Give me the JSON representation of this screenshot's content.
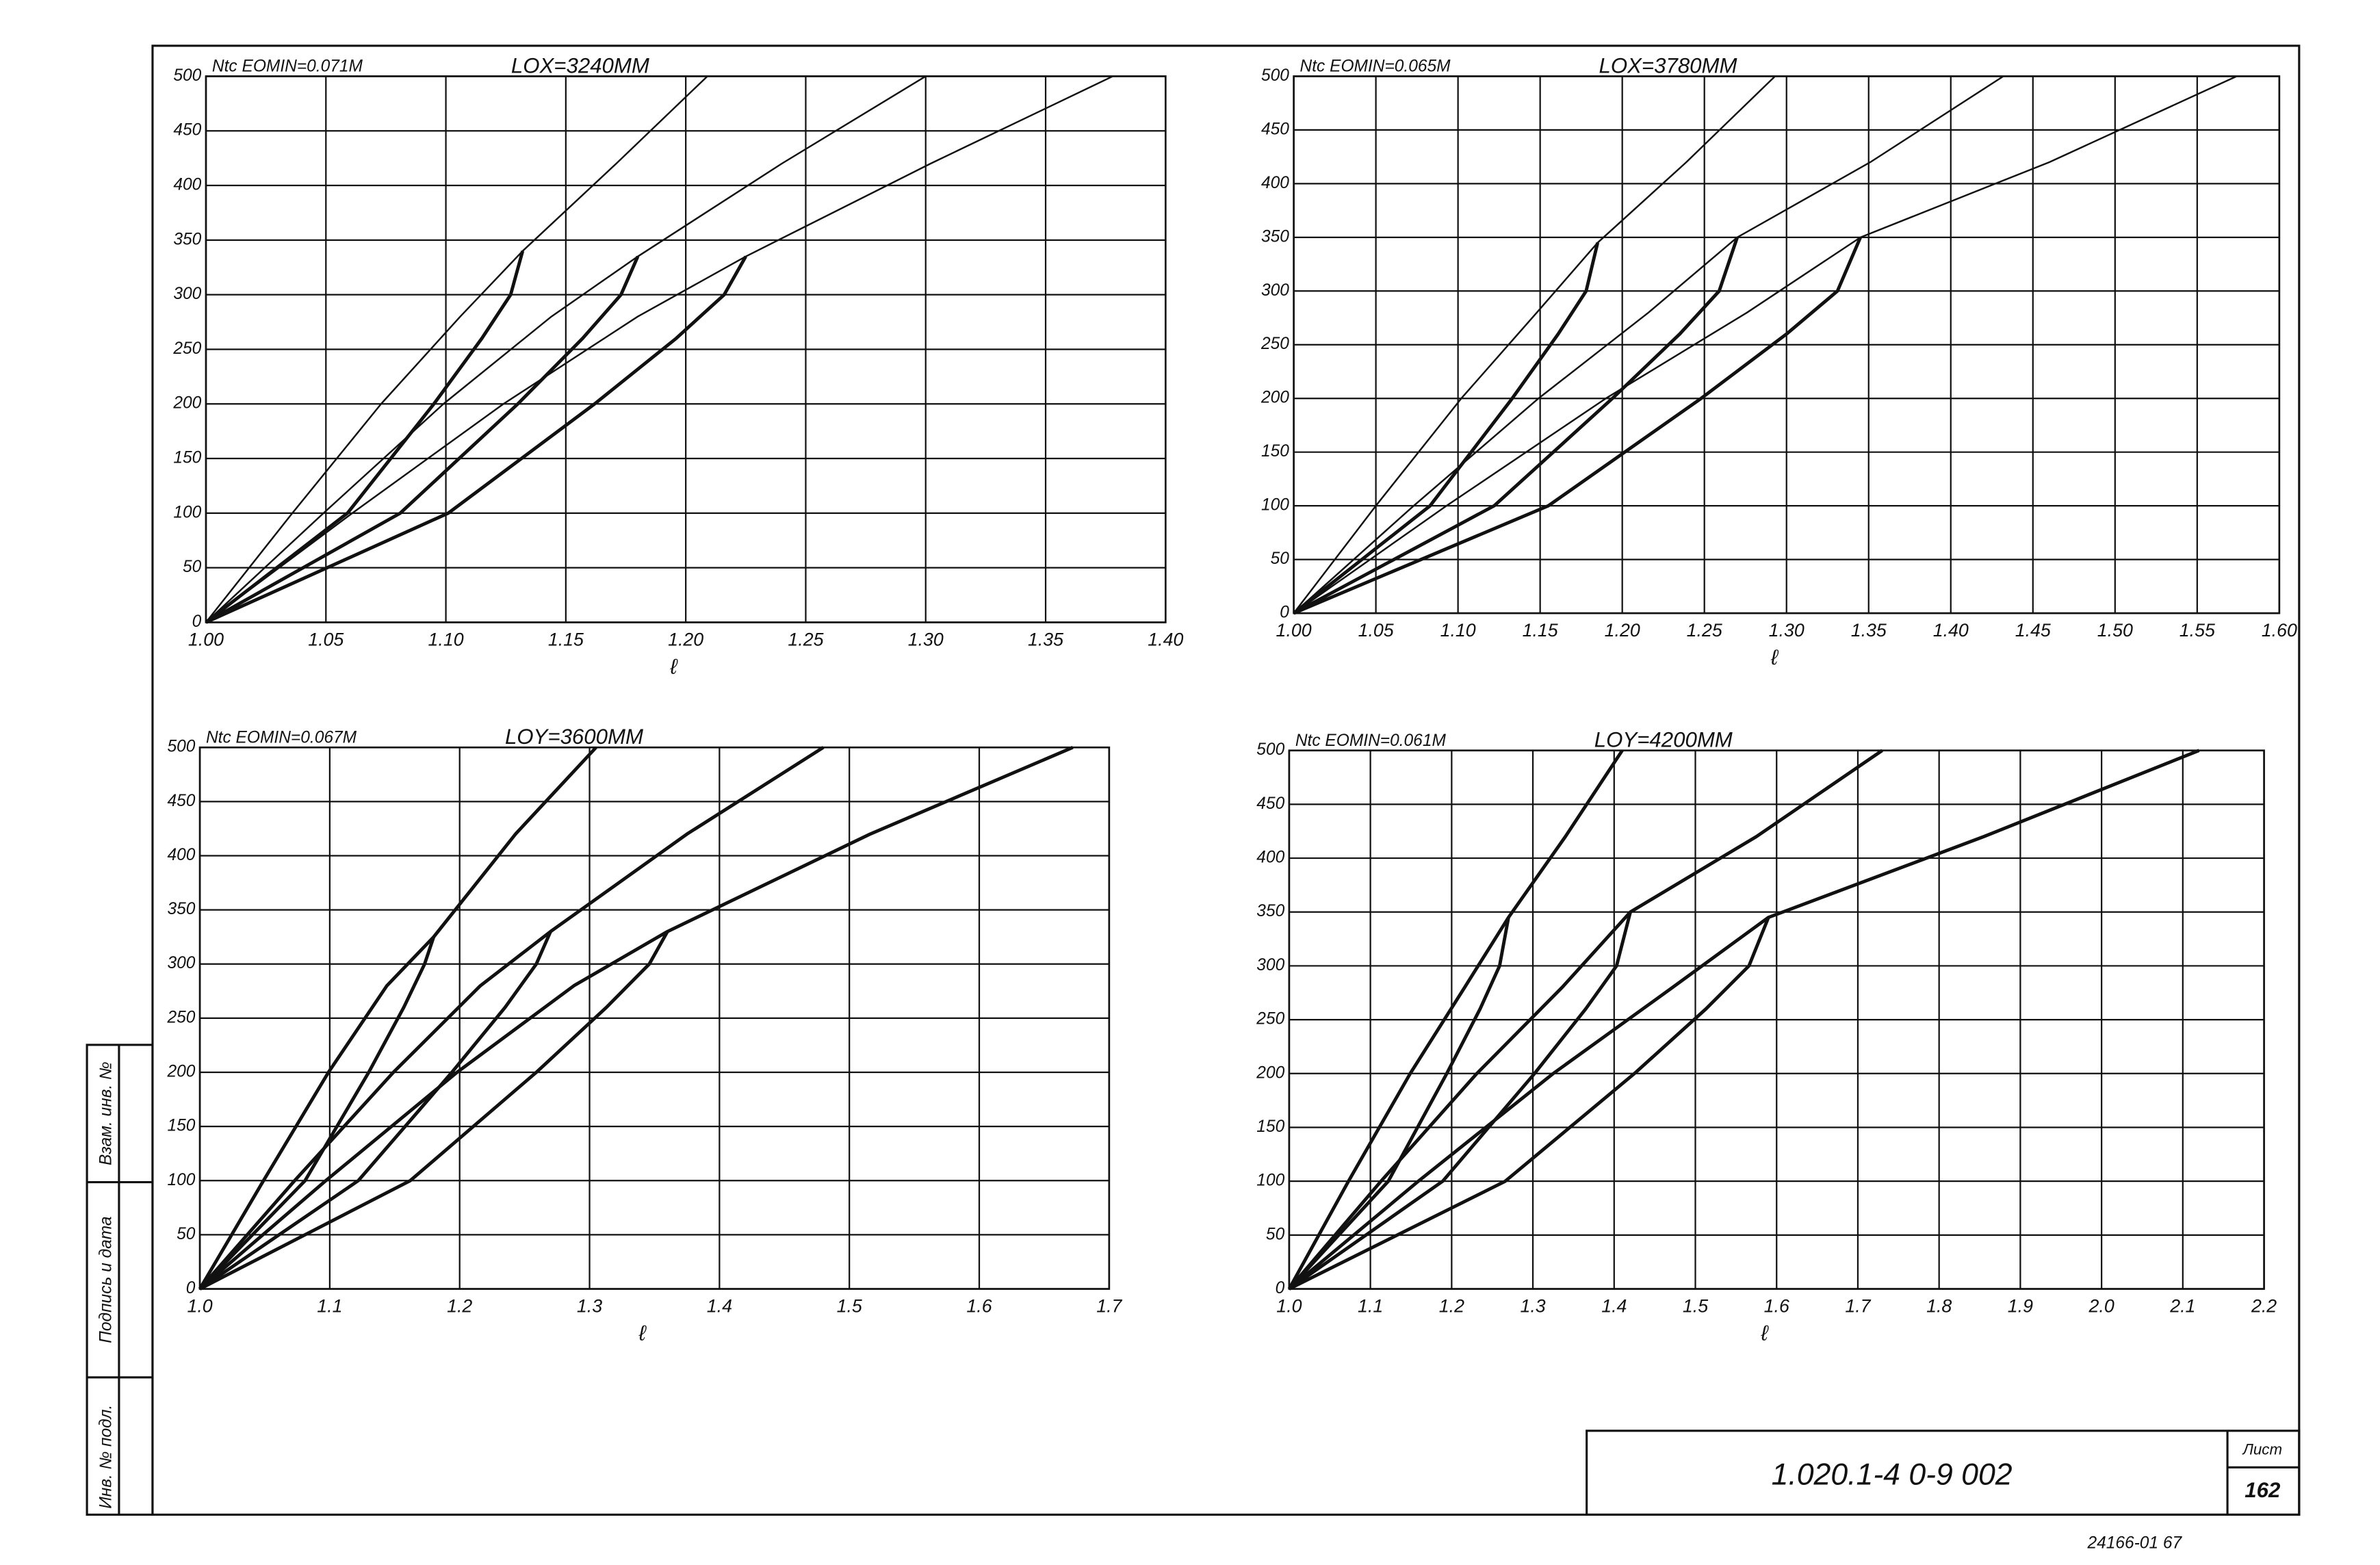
{
  "chart_data": [
    {
      "type": "line",
      "title": "Ntc EOMIN=0.071M",
      "subtitle": "LOX=3240MM",
      "xlabel": "ℓ",
      "xlim": [
        1.0,
        1.4
      ],
      "ylim": [
        0,
        500
      ],
      "grid": true,
      "xticks": [
        {
          "value": 1.0,
          "label": "1.00"
        },
        1.05,
        {
          "value": 1.1,
          "label": "1.10"
        },
        1.15,
        {
          "value": 1.2,
          "label": "1.20"
        },
        1.25,
        {
          "value": 1.3,
          "label": "1.30"
        },
        1.35,
        {
          "value": 1.4,
          "label": "1.40"
        }
      ],
      "yticks": [
        0,
        50,
        100,
        150,
        200,
        250,
        300,
        350,
        400,
        450,
        500
      ],
      "series": [
        {
          "color": "#111",
          "line_width": 1,
          "x": [
            1,
            1.036,
            1.073,
            1.106,
            1.132,
            1.171,
            1.209
          ],
          "values": [
            0,
            100,
            200,
            280,
            340,
            420,
            500
          ]
        },
        {
          "color": "#111",
          "line_width": 2,
          "x": [
            1,
            1.059,
            1.095,
            1.115,
            1.127,
            1.132
          ],
          "values": [
            0,
            100,
            200,
            260,
            300,
            340
          ]
        },
        {
          "color": "#111",
          "line_width": 1,
          "x": [
            1,
            1.049,
            1.099,
            1.144,
            1.18,
            1.24,
            1.3
          ],
          "values": [
            0,
            100,
            200,
            280,
            335,
            420,
            500
          ]
        },
        {
          "color": "#111",
          "line_width": 2,
          "x": [
            1,
            1.081,
            1.13,
            1.157,
            1.173,
            1.18
          ],
          "values": [
            0,
            100,
            200,
            260,
            300,
            335
          ]
        },
        {
          "color": "#111",
          "line_width": 1,
          "x": [
            1,
            1.061,
            1.124,
            1.18,
            1.225,
            1.302,
            1.378
          ],
          "values": [
            0,
            100,
            200,
            280,
            335,
            420,
            500
          ]
        },
        {
          "color": "#111",
          "line_width": 2,
          "x": [
            1,
            1.101,
            1.162,
            1.196,
            1.216,
            1.225
          ],
          "values": [
            0,
            100,
            200,
            260,
            300,
            335
          ]
        }
      ]
    },
    {
      "type": "line",
      "title": "Ntc EOMIN=0.065M",
      "subtitle": "LOX=3780MM",
      "xlabel": "ℓ",
      "xlim": [
        1.0,
        1.6
      ],
      "ylim": [
        0,
        500
      ],
      "grid": true,
      "xticks": [
        {
          "value": 1.0,
          "label": "1.00"
        },
        1.05,
        {
          "value": 1.1,
          "label": "1.10"
        },
        1.15,
        {
          "value": 1.2,
          "label": "1.20"
        },
        1.25,
        {
          "value": 1.3,
          "label": "1.30"
        },
        1.35,
        {
          "value": 1.4,
          "label": "1.40"
        },
        1.45,
        {
          "value": 1.5,
          "label": "1.50"
        },
        1.55,
        {
          "value": 1.6,
          "label": "1.60"
        }
      ],
      "yticks": [
        0,
        50,
        100,
        150,
        200,
        250,
        300,
        350,
        400,
        450,
        500
      ],
      "series": [
        {
          "color": "#111",
          "line_width": 1,
          "x": [
            1,
            1.05,
            1.102,
            1.148,
            1.185,
            1.239,
            1.293
          ],
          "values": [
            0,
            100,
            200,
            280,
            345,
            420,
            500
          ]
        },
        {
          "color": "#111",
          "line_width": 2,
          "x": [
            1,
            1.083,
            1.133,
            1.161,
            1.178,
            1.185
          ],
          "values": [
            0,
            100,
            200,
            260,
            300,
            345
          ]
        },
        {
          "color": "#111",
          "line_width": 1,
          "x": [
            1,
            1.073,
            1.149,
            1.216,
            1.27,
            1.351,
            1.432
          ],
          "values": [
            0,
            100,
            200,
            280,
            350,
            420,
            500
          ]
        },
        {
          "color": "#111",
          "line_width": 2,
          "x": [
            1,
            1.122,
            1.194,
            1.235,
            1.259,
            1.27
          ],
          "values": [
            0,
            100,
            200,
            260,
            300,
            350
          ]
        },
        {
          "color": "#111",
          "line_width": 1,
          "x": [
            1,
            1.093,
            1.19,
            1.276,
            1.345,
            1.46,
            1.574
          ],
          "values": [
            0,
            100,
            200,
            280,
            350,
            420,
            500
          ]
        },
        {
          "color": "#111",
          "line_width": 2,
          "x": [
            1,
            1.155,
            1.248,
            1.3,
            1.331,
            1.345
          ],
          "values": [
            0,
            100,
            200,
            260,
            300,
            350
          ]
        }
      ]
    },
    {
      "type": "line",
      "title": "Ntc EOMIN=0.067M",
      "subtitle": "LOY=3600MM",
      "xlabel": "ℓ",
      "xlim": [
        1.0,
        1.7
      ],
      "ylim": [
        0,
        500
      ],
      "grid": true,
      "xticks": [
        {
          "value": 1.0,
          "label": "1.0"
        },
        1.1,
        1.2,
        1.3,
        1.4,
        1.5,
        1.6,
        1.7
      ],
      "yticks": [
        0,
        50,
        100,
        150,
        200,
        250,
        300,
        350,
        400,
        450,
        500
      ],
      "series": [
        {
          "color": "#111",
          "line_width": 2,
          "x": [
            1,
            1.049,
            1.099,
            1.144,
            1.18,
            1.243,
            1.305
          ],
          "values": [
            0,
            100,
            200,
            280,
            325,
            420,
            500
          ]
        },
        {
          "color": "#111",
          "line_width": 2,
          "x": [
            1,
            1.081,
            1.13,
            1.157,
            1.173,
            1.18
          ],
          "values": [
            0,
            100,
            200,
            260,
            300,
            325
          ]
        },
        {
          "color": "#111",
          "line_width": 2,
          "x": [
            1,
            1.073,
            1.149,
            1.216,
            1.27,
            1.375,
            1.48
          ],
          "values": [
            0,
            100,
            200,
            280,
            330,
            420,
            500
          ]
        },
        {
          "color": "#111",
          "line_width": 2,
          "x": [
            1,
            1.122,
            1.194,
            1.235,
            1.259,
            1.27
          ],
          "values": [
            0,
            100,
            200,
            260,
            300,
            330
          ]
        },
        {
          "color": "#111",
          "line_width": 2,
          "x": [
            1,
            1.097,
            1.198,
            1.288,
            1.36,
            1.516,
            1.672
          ],
          "values": [
            0,
            100,
            200,
            280,
            330,
            420,
            500
          ]
        },
        {
          "color": "#111",
          "line_width": 2,
          "x": [
            1,
            1.162,
            1.259,
            1.313,
            1.346,
            1.36
          ],
          "values": [
            0,
            100,
            200,
            260,
            300,
            330
          ]
        }
      ]
    },
    {
      "type": "line",
      "title": "Ntc EOMIN=0.061M",
      "subtitle": "LOY=4200MM",
      "xlabel": "ℓ",
      "xlim": [
        1.0,
        2.2
      ],
      "ylim": [
        0,
        500
      ],
      "grid": true,
      "xticks": [
        {
          "value": 1.0,
          "label": "1.0"
        },
        1.1,
        1.2,
        1.3,
        1.4,
        1.5,
        1.6,
        1.7,
        1.8,
        1.9,
        {
          "value": 2.0,
          "label": "2.0"
        },
        2.1,
        2.2
      ],
      "yticks": [
        0,
        50,
        100,
        150,
        200,
        250,
        300,
        350,
        400,
        450,
        500
      ],
      "series": [
        {
          "color": "#111",
          "line_width": 2,
          "x": [
            1,
            1.073,
            1.149,
            1.216,
            1.27,
            1.34,
            1.41
          ],
          "values": [
            0,
            100,
            200,
            280,
            345,
            420,
            500
          ]
        },
        {
          "color": "#111",
          "line_width": 2,
          "x": [
            1,
            1.122,
            1.194,
            1.235,
            1.259,
            1.27
          ],
          "values": [
            0,
            100,
            200,
            260,
            300,
            345
          ]
        },
        {
          "color": "#111",
          "line_width": 2,
          "x": [
            1,
            1.113,
            1.231,
            1.336,
            1.42,
            1.575,
            1.73
          ],
          "values": [
            0,
            100,
            200,
            280,
            350,
            420,
            500
          ]
        },
        {
          "color": "#111",
          "line_width": 2,
          "x": [
            1,
            1.189,
            1.302,
            1.365,
            1.403,
            1.42
          ],
          "values": [
            0,
            100,
            200,
            260,
            300,
            350
          ]
        },
        {
          "color": "#111",
          "line_width": 2,
          "x": [
            1,
            1.159,
            1.325,
            1.472,
            1.59,
            1.855,
            2.12
          ],
          "values": [
            0,
            100,
            200,
            280,
            345,
            420,
            500
          ]
        },
        {
          "color": "#111",
          "line_width": 2,
          "x": [
            1,
            1.266,
            1.425,
            1.513,
            1.566,
            1.59
          ],
          "values": [
            0,
            100,
            200,
            260,
            300,
            345
          ]
        }
      ]
    }
  ],
  "frame": {
    "designation": "1.020.1-4   0-9   002",
    "sheet_label": "Лист",
    "sheet_number": "162",
    "footer": "24166-01   67",
    "side_stamp": [
      "Инв. № подл.",
      "Подпись и дата",
      "Взам. инв. №"
    ]
  }
}
